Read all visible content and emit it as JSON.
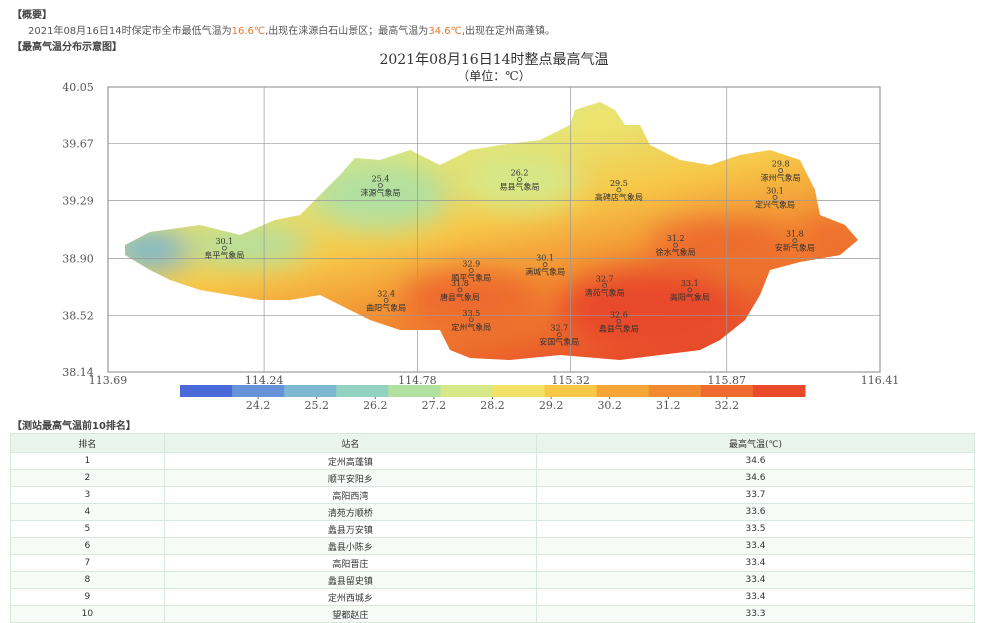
{
  "header": {
    "summary_title": "【概要】",
    "summary": {
      "prefix": "2021年08月16日14时保定市全市最低气温为",
      "min_temp": "16.6℃",
      "mid": ",出现在涞源白石山景区；最高气温为",
      "max_temp": "34.6℃",
      "suffix": ",出现在定州高蓬镇。"
    },
    "map_section": "【最高气温分布示意图】",
    "table_section": "【测站最高气温前10排名】"
  },
  "chart_data": {
    "type": "map",
    "title": "2021年08月16日14时整点最高气温",
    "subtitle": "（单位：℃）",
    "xlim": [
      113.69,
      116.41
    ],
    "ylim": [
      38.14,
      40.05
    ],
    "xticks": [
      113.69,
      114.24,
      114.78,
      115.32,
      115.87,
      116.41
    ],
    "yticks": [
      38.14,
      38.52,
      {
        "value": 38.9,
        "label": "38.90"
      },
      39.29,
      39.67,
      40.05
    ],
    "grid": true,
    "colorbar": {
      "colors": [
        "#4a6ad8",
        "#6693d8",
        "#7cb6d0",
        "#93d2bf",
        "#b2e0a0",
        "#d6e888",
        "#f3e266",
        "#f8c848",
        "#f5a636",
        "#f18a30",
        "#ee6a2e",
        "#e84a2a"
      ],
      "ticks": [
        24.2,
        25.2,
        26.2,
        27.2,
        28.2,
        29.2,
        30.2,
        31.2,
        32.2
      ]
    },
    "stations": [
      {
        "name": "涞源气象局",
        "value": 25.4,
        "lon": 114.65,
        "lat": 39.39
      },
      {
        "name": "易县气象局",
        "value": 26.2,
        "lon": 115.14,
        "lat": 39.43
      },
      {
        "name": "高碑店气象局",
        "value": 29.5,
        "lon": 115.49,
        "lat": 39.36
      },
      {
        "name": "涿州气象局",
        "value": 29.8,
        "lon": 116.06,
        "lat": 39.49
      },
      {
        "name": "定兴气象局",
        "value": 30.1,
        "lon": 116.04,
        "lat": 39.31
      },
      {
        "name": "阜平气象局",
        "value": 30.1,
        "lon": 114.1,
        "lat": 38.97
      },
      {
        "name": "徐水气象局",
        "value": 31.2,
        "lon": 115.69,
        "lat": 38.99
      },
      {
        "name": "安新气象局",
        "value": 31.8,
        "lon": 116.11,
        "lat": 39.02
      },
      {
        "name": "满城气象局",
        "value": 30.1,
        "lon": 115.23,
        "lat": 38.86
      },
      {
        "name": "顺平气象局",
        "value": 32.9,
        "lon": 114.97,
        "lat": 38.82
      },
      {
        "name": "唐县气象局",
        "value": 31.8,
        "lon": 114.93,
        "lat": 38.69
      },
      {
        "name": "清苑气象局",
        "value": 32.7,
        "lon": 115.44,
        "lat": 38.72
      },
      {
        "name": "高阳气象局",
        "value": 33.1,
        "lon": 115.74,
        "lat": 38.69
      },
      {
        "name": "曲阳气象局",
        "value": 32.4,
        "lon": 114.67,
        "lat": 38.62
      },
      {
        "name": "定州气象局",
        "value": 33.5,
        "lon": 114.97,
        "lat": 38.49
      },
      {
        "name": "蠡县气象局",
        "value": 32.6,
        "lon": 115.49,
        "lat": 38.48
      },
      {
        "name": "安国气象局",
        "value": 32.7,
        "lon": 115.28,
        "lat": 38.39
      }
    ]
  },
  "table": {
    "columns": [
      "排名",
      "站名",
      "最高气温(℃)"
    ],
    "rows": [
      [
        "1",
        "定州高蓬镇",
        "34.6"
      ],
      [
        "2",
        "顺平安阳乡",
        "34.6"
      ],
      [
        "3",
        "高阳西湾",
        "33.7"
      ],
      [
        "4",
        "清苑方顺桥",
        "33.6"
      ],
      [
        "5",
        "蠡县万安镇",
        "33.5"
      ],
      [
        "6",
        "蠡县小陈乡",
        "33.4"
      ],
      [
        "7",
        "高阳晋庄",
        "33.4"
      ],
      [
        "8",
        "蠡县留史镇",
        "33.4"
      ],
      [
        "9",
        "定州西城乡",
        "33.4"
      ],
      [
        "10",
        "望都赵庄",
        "33.3"
      ]
    ]
  }
}
